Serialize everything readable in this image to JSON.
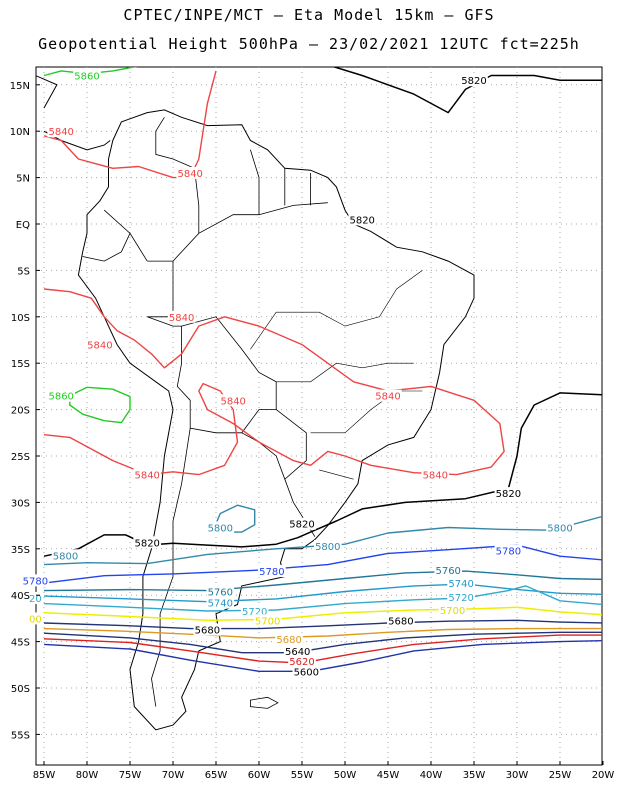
{
  "title_line1": "CPTEC/INPE/MCT –  Eta Model 15km – GFS",
  "title_line2": "Geopotential Height 500hPa – 23/02/2021 12UTC fct=225h",
  "lat_labels": [
    "15N",
    "10N",
    "5N",
    "EQ",
    "5S",
    "10S",
    "15S",
    "20S",
    "25S",
    "30S",
    "35S",
    "40S",
    "45S",
    "50S",
    "55S"
  ],
  "lon_labels": [
    "85W",
    "80W",
    "75W",
    "70W",
    "65W",
    "60W",
    "55W",
    "50W",
    "45W",
    "40W",
    "35W",
    "30W",
    "25W",
    "20W"
  ],
  "colors": {
    "c5860": "#22cc22",
    "c5840": "#ee4444",
    "c5820": "#000000",
    "c5800": "#3388aa",
    "c5780": "#2244ee",
    "c5760": "#227799",
    "c5740": "#2299cc",
    "c5720": "#33aacc",
    "c5700": "#eeee00",
    "c5680": "#dd9922",
    "c5660": "#223377",
    "c5620": "#dd2222",
    "c5600": "#2233aa",
    "grid": "#aaaaaa",
    "coast": "#000000"
  },
  "contour_labels": [
    {
      "text": "5860",
      "color": "#22cc22",
      "lon": -80,
      "lat": 16
    },
    {
      "text": "5860",
      "color": "#22cc22",
      "lon": -83,
      "lat": -18.5
    },
    {
      "text": "5840",
      "color": "#ee4444",
      "lon": -83,
      "lat": 10
    },
    {
      "text": "5840",
      "color": "#ee4444",
      "lon": -68,
      "lat": 5.5
    },
    {
      "text": "5840",
      "color": "#ee4444",
      "lon": -78.5,
      "lat": -13
    },
    {
      "text": "5840",
      "color": "#ee4444",
      "lon": -69,
      "lat": -10
    },
    {
      "text": "5840",
      "color": "#ee4444",
      "lon": -63,
      "lat": -19
    },
    {
      "text": "5840",
      "color": "#ee4444",
      "lon": -45,
      "lat": -18.5
    },
    {
      "text": "5840",
      "color": "#ee4444",
      "lon": -73,
      "lat": -27
    },
    {
      "text": "5840",
      "color": "#ee4444",
      "lon": -39.5,
      "lat": -27
    },
    {
      "text": "5820",
      "color": "#000000",
      "lon": -35,
      "lat": 15.5
    },
    {
      "text": "5820",
      "color": "#000000",
      "lon": -48,
      "lat": 0.5
    },
    {
      "text": "5820",
      "color": "#000000",
      "lon": -31,
      "lat": -29
    },
    {
      "text": "5820",
      "color": "#000000",
      "lon": -55,
      "lat": -32.3
    },
    {
      "text": "5820",
      "color": "#000000",
      "lon": -73,
      "lat": -34.3
    },
    {
      "text": "5800",
      "color": "#3388aa",
      "lon": -64.5,
      "lat": -32.7
    },
    {
      "text": "5800",
      "color": "#3388aa",
      "lon": -52,
      "lat": -34.7
    },
    {
      "text": "5800",
      "color": "#3388aa",
      "lon": -82.5,
      "lat": -35.7
    },
    {
      "text": "5800",
      "color": "#3388aa",
      "lon": -25,
      "lat": -32.7
    },
    {
      "text": "5780",
      "color": "#2244ee",
      "lon": -86,
      "lat": -38.4
    },
    {
      "text": "5780",
      "color": "#2244ee",
      "lon": -58.5,
      "lat": -37.4
    },
    {
      "text": "5780",
      "color": "#2244ee",
      "lon": -31,
      "lat": -35.2
    },
    {
      "text": "5760",
      "color": "#227799",
      "lon": -64.5,
      "lat": -39.6
    },
    {
      "text": "5760",
      "color": "#227799",
      "lon": -38,
      "lat": -37.3
    },
    {
      "text": "5740",
      "color": "#2299cc",
      "lon": -64.5,
      "lat": -40.8
    },
    {
      "text": "5740",
      "color": "#2299cc",
      "lon": -36.5,
      "lat": -38.7
    },
    {
      "text": "5720",
      "color": "#33aacc",
      "lon": -60.5,
      "lat": -41.7
    },
    {
      "text": "5720",
      "color": "#33aacc",
      "lon": -36.5,
      "lat": -40.2
    },
    {
      "text": "20",
      "color": "#33aacc",
      "lon": -86,
      "lat": -40.3
    },
    {
      "text": "5700",
      "color": "#dddd00",
      "lon": -59,
      "lat": -42.7
    },
    {
      "text": "5700",
      "color": "#dddd00",
      "lon": -37.5,
      "lat": -41.6
    },
    {
      "text": "00",
      "color": "#dddd00",
      "lon": -86,
      "lat": -42.5
    },
    {
      "text": "5680",
      "color": "#000000",
      "lon": -66,
      "lat": -43.7
    },
    {
      "text": "5680",
      "color": "#000000",
      "lon": -43.5,
      "lat": -42.7
    },
    {
      "text": "5680",
      "color": "#dd9922",
      "lon": -56.5,
      "lat": -44.7
    },
    {
      "text": "5640",
      "color": "#000000",
      "lon": -55.5,
      "lat": -46
    },
    {
      "text": "5620",
      "color": "#dd2222",
      "lon": -55,
      "lat": -47.1
    },
    {
      "text": "5600",
      "color": "#000000",
      "lon": -54.5,
      "lat": -48.2
    }
  ]
}
